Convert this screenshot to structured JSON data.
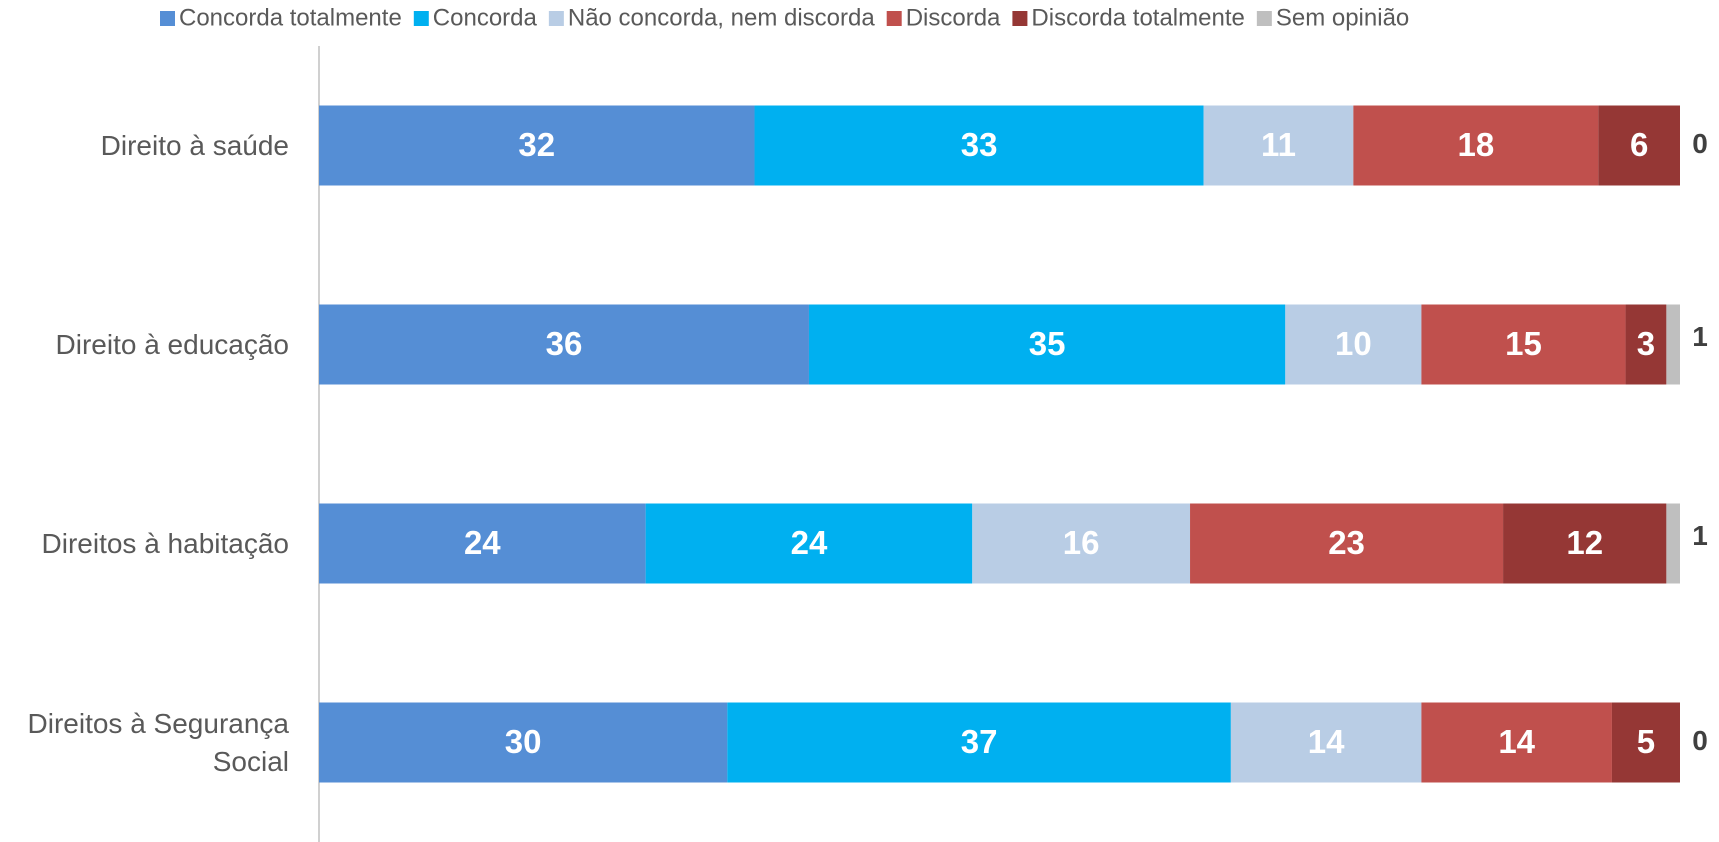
{
  "chart_data": {
    "type": "stacked_barh",
    "categories": [
      "Direito à saúde",
      "Direito à educação",
      "Direitos à habitação",
      "Direitos à Segurança Social"
    ],
    "series": [
      {
        "name": "Concorda totalmente",
        "color": "#558ed5",
        "values": [
          32,
          36,
          24,
          30
        ]
      },
      {
        "name": "Concorda",
        "color": "#00b0f0",
        "values": [
          33,
          35,
          24,
          37
        ]
      },
      {
        "name": "Não concorda, nem discorda",
        "color": "#b9cde5",
        "values": [
          11,
          10,
          16,
          14
        ]
      },
      {
        "name": "Discorda",
        "color": "#c0504d",
        "values": [
          18,
          15,
          23,
          14
        ]
      },
      {
        "name": "Discorda totalmente",
        "color": "#953735",
        "values": [
          6,
          3,
          12,
          5
        ]
      },
      {
        "name": "Sem opinião",
        "color": "#bfbfbf",
        "values": [
          0,
          1,
          1,
          0
        ]
      }
    ],
    "legend": "top"
  }
}
